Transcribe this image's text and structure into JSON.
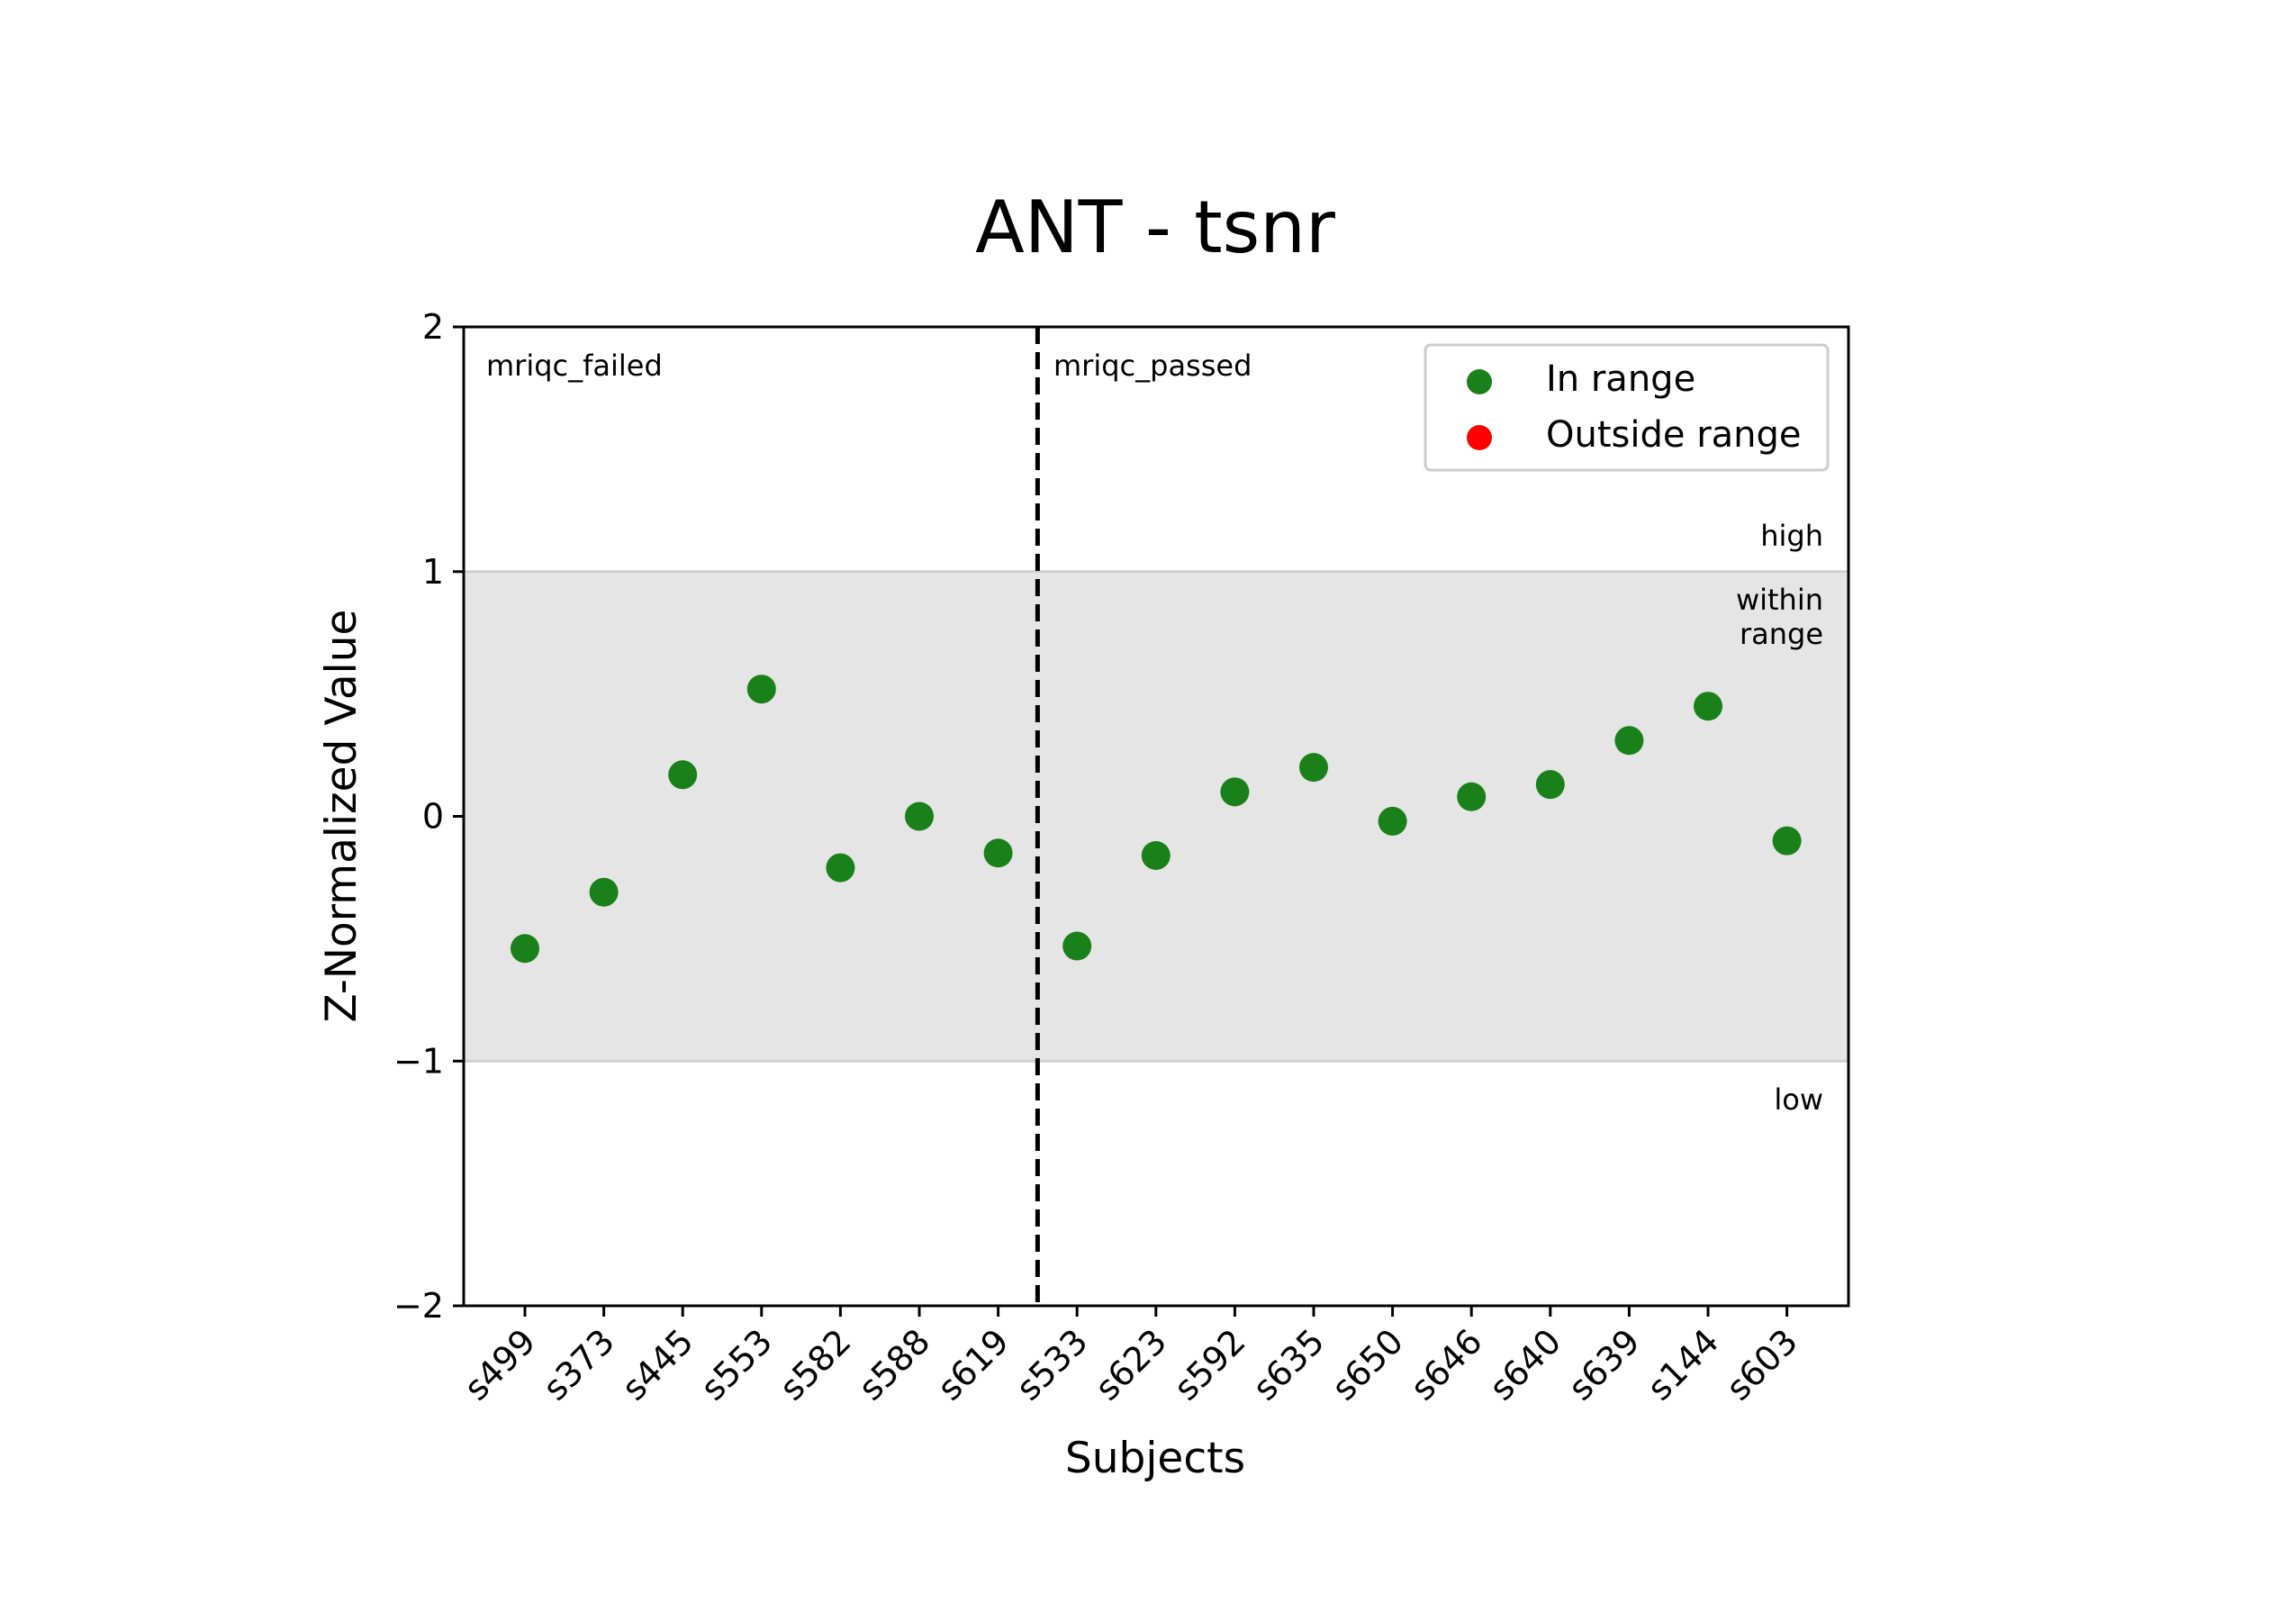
{
  "chart_data": {
    "type": "scatter",
    "title": "ANT - tsnr",
    "xlabel": "Subjects",
    "ylabel": "Z-Normalized Value",
    "ylim": [
      -2,
      2
    ],
    "yticks": [
      2,
      1,
      0,
      -1,
      -2
    ],
    "ytick_labels": [
      "2",
      "1",
      "0",
      "−1",
      "−2"
    ],
    "categories": [
      "s499",
      "s373",
      "s445",
      "s553",
      "s582",
      "s588",
      "s619",
      "s533",
      "s623",
      "s592",
      "s635",
      "s650",
      "s646",
      "s640",
      "s639",
      "s144",
      "s603"
    ],
    "series": [
      {
        "name": "In range",
        "color": "#1a801a",
        "values": [
          -0.54,
          -0.31,
          0.17,
          0.52,
          -0.21,
          0.0,
          -0.15,
          -0.53,
          -0.16,
          0.1,
          0.2,
          -0.02,
          0.08,
          0.13,
          0.31,
          0.45,
          -0.1
        ]
      },
      {
        "name": "Outside range",
        "color": "#ff0000",
        "values": []
      }
    ],
    "range_band": {
      "low": -1,
      "high": 1,
      "color": "#e5e5e5"
    },
    "divider_after_index": 6,
    "group_labels": [
      "mriqc_failed",
      "mriqc_passed"
    ],
    "range_labels": {
      "high": "high",
      "within_line1": "within",
      "within_line2": "range",
      "low": "low"
    },
    "legend": {
      "position": "top-right",
      "entries": [
        "In range",
        "Outside range"
      ]
    },
    "grid": false
  }
}
